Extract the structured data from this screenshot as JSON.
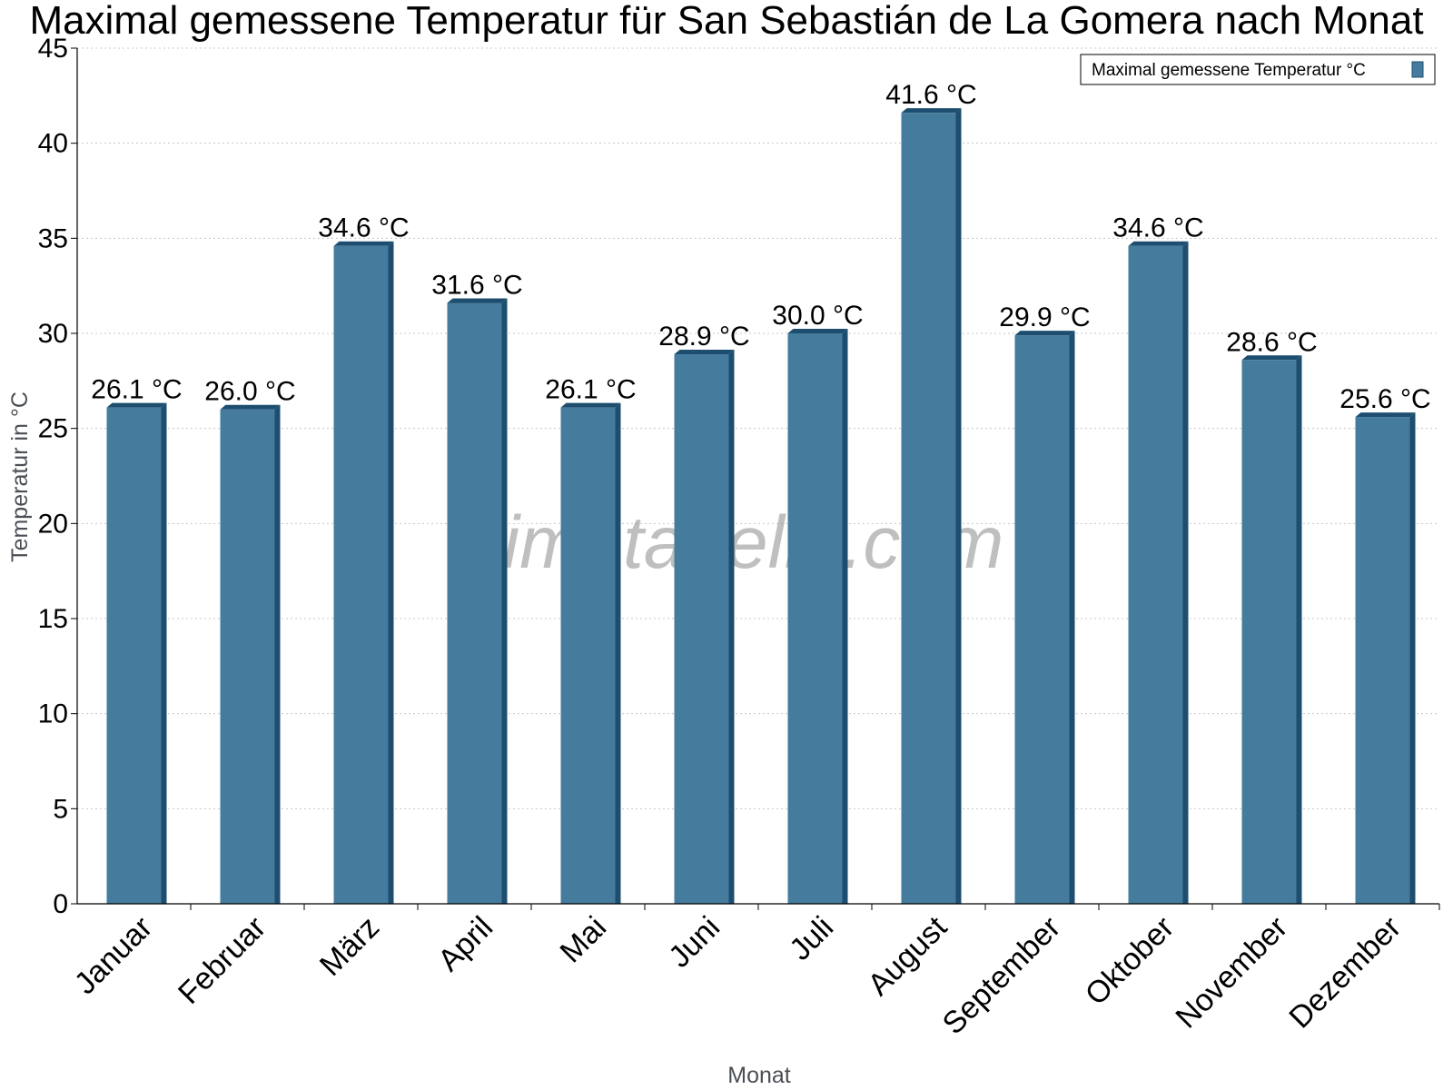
{
  "chart_data": {
    "type": "bar",
    "title": "Maximal gemessene Temperatur für San Sebastián de La Gomera nach Monat",
    "xlabel": "Monat",
    "ylabel": "Temperatur in °C",
    "categories": [
      "Januar",
      "Februar",
      "März",
      "April",
      "Mai",
      "Juni",
      "Juli",
      "August",
      "September",
      "Oktober",
      "November",
      "Dezember"
    ],
    "series": [
      {
        "name": "Maximal gemessene Temperatur °C",
        "values": [
          26.1,
          26.0,
          34.6,
          31.6,
          26.1,
          28.9,
          30.0,
          41.6,
          29.9,
          34.6,
          28.6,
          25.6
        ],
        "labels": [
          "26.1 °C",
          "26.0 °C",
          "34.6 °C",
          "31.6 °C",
          "26.1 °C",
          "28.9 °C",
          "30.0 °C",
          "41.6 °C",
          "29.9 °C",
          "34.6 °C",
          "28.6 °C",
          "25.6 °C"
        ]
      }
    ],
    "ylim": [
      0,
      45
    ],
    "yticks": [
      0,
      5,
      10,
      15,
      20,
      25,
      30,
      35,
      40,
      45
    ],
    "grid": true,
    "legend_position": "top-right",
    "bar_color": "#457b9d",
    "bar_shade_color": "#1d4e6f",
    "watermark": "klimatabelle.com"
  }
}
